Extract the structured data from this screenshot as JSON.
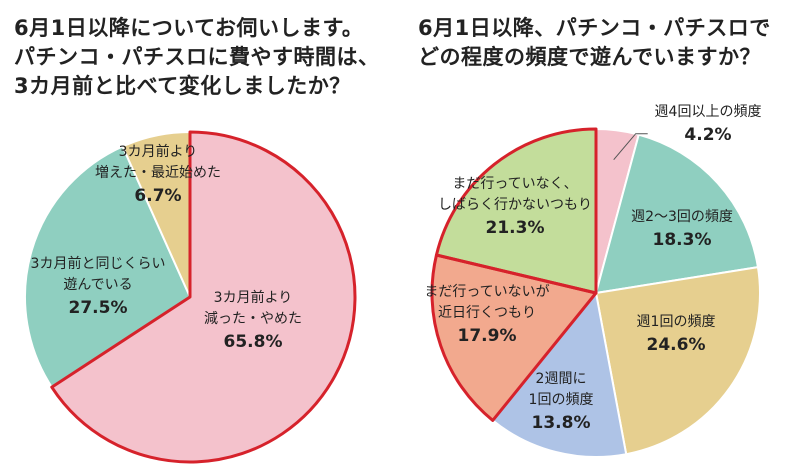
{
  "charts": [
    {
      "title_lines": [
        "6月1日以降についてお伺いします。",
        "パチンコ・パチスロに費やす時間は、",
        "3カ月前と比べて変化しましたか？"
      ]
    },
    {
      "title_lines": [
        "6月1日以降、パチンコ・パチスロで",
        "どの程度の頻度で遊んでいますか？"
      ]
    }
  ],
  "chart_data": [
    {
      "type": "pie",
      "title": "6月1日以降についてお伺いします。パチンコ・パチスロに費やす時間は、3カ月前と比べて変化しましたか？",
      "start": "12 o'clock, clockwise",
      "slices": [
        {
          "label_lines": [
            "3カ月前より",
            "減った・やめた"
          ],
          "value": 65.8,
          "display": "65.8%",
          "color": "#f4c2cc",
          "highlight": true
        },
        {
          "label_lines": [
            "3カ月前と同じくらい",
            "遊んでいる"
          ],
          "value": 27.5,
          "display": "27.5%",
          "color": "#8fcfc0",
          "highlight": false
        },
        {
          "label_lines": [
            "3カ月前より",
            "増えた・最近始めた"
          ],
          "value": 6.7,
          "display": "6.7%",
          "color": "#e6cf8f",
          "highlight": false
        }
      ]
    },
    {
      "type": "pie",
      "title": "6月1日以降、パチンコ・パチスロでどの程度の頻度で遊んでいますか？",
      "start": "12 o'clock, clockwise",
      "slices": [
        {
          "label_lines": [
            "週4回以上の頻度"
          ],
          "value": 4.2,
          "display": "4.2%",
          "color": "#f4c2cc",
          "highlight": false
        },
        {
          "label_lines": [
            "週2～3回の頻度"
          ],
          "value": 18.3,
          "display": "18.3%",
          "color": "#8fcfc0",
          "highlight": false
        },
        {
          "label_lines": [
            "週1回の頻度"
          ],
          "value": 24.6,
          "display": "24.6%",
          "color": "#e6cf8f",
          "highlight": false
        },
        {
          "label_lines": [
            "2週間に",
            "1回の頻度"
          ],
          "value": 13.8,
          "display": "13.8%",
          "color": "#aec3e6",
          "highlight": false
        },
        {
          "label_lines": [
            "まだ行っていないが",
            "近日行くつもり"
          ],
          "value": 17.9,
          "display": "17.9%",
          "color": "#f2a98e",
          "highlight": true
        },
        {
          "label_lines": [
            "まだ行っていなく、",
            "しばらく行かないつもり"
          ],
          "value": 21.3,
          "display": "21.3%",
          "color": "#c3dd9b",
          "highlight": true
        }
      ]
    }
  ]
}
